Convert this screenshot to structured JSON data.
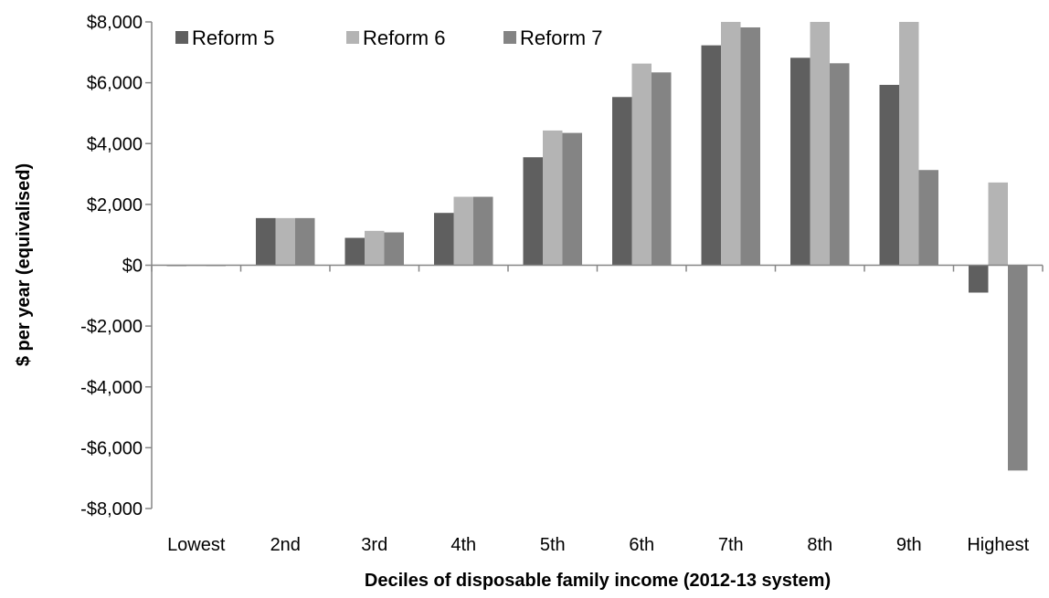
{
  "chart_data": {
    "type": "bar",
    "title": "",
    "xlabel": "Deciles of disposable family income (2012-13 system)",
    "ylabel": "$ per year (equivalised)",
    "categories": [
      "Lowest",
      "2nd",
      "3rd",
      "4th",
      "5th",
      "6th",
      "7th",
      "8th",
      "9th",
      "Highest"
    ],
    "series": [
      {
        "name": "Reform 5",
        "color": "#5f5f5f",
        "values": [
          0,
          1550,
          900,
          1720,
          3550,
          5530,
          7230,
          6820,
          5930,
          -900
        ]
      },
      {
        "name": "Reform 6",
        "color": "#b4b4b4",
        "values": [
          0,
          1550,
          1130,
          2250,
          4430,
          6630,
          8000,
          8000,
          8000,
          2720
        ]
      },
      {
        "name": "Reform 7",
        "color": "#848484",
        "values": [
          0,
          1550,
          1080,
          2250,
          4350,
          6340,
          7820,
          6640,
          3130,
          -6750
        ]
      }
    ],
    "ylim": [
      -8000,
      8000
    ],
    "yticks": [
      -8000,
      -6000,
      -4000,
      -2000,
      0,
      2000,
      4000,
      6000,
      8000
    ],
    "ytick_labels": [
      "-$8,000",
      "-$6,000",
      "-$4,000",
      "-$2,000",
      "$0",
      "$2,000",
      "$4,000",
      "$6,000",
      "$8,000"
    ],
    "grid": false,
    "legend_position": "top-left"
  }
}
